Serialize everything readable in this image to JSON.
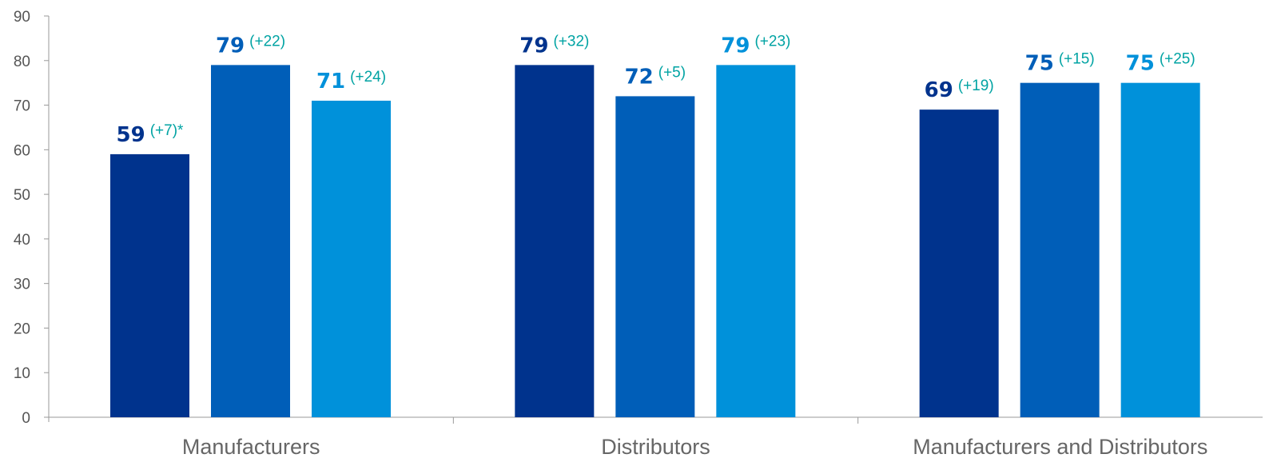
{
  "chart_data": {
    "type": "bar",
    "categories": [
      "Manufacturers",
      "Distributors",
      "Manufacturers and Distributors"
    ],
    "series": [
      {
        "color": "#00338d",
        "values": [
          59,
          79,
          69
        ],
        "annotations": [
          "(+7)*",
          "(+32)",
          "(+19)"
        ]
      },
      {
        "color": "#005eb8",
        "values": [
          79,
          72,
          75
        ],
        "annotations": [
          "(+22)",
          "(+5)",
          "(+15)"
        ]
      },
      {
        "color": "#0091da",
        "values": [
          71,
          79,
          75
        ],
        "annotations": [
          "(+24)",
          "(+23)",
          "(+25)"
        ]
      }
    ],
    "ylim": [
      0,
      90
    ],
    "yticks": [
      0,
      10,
      20,
      30,
      40,
      50,
      60,
      70,
      80,
      90
    ],
    "title": "",
    "xlabel": "",
    "ylabel": "",
    "grid": false,
    "legend": "none",
    "annotation_color": "#00a3a3"
  }
}
